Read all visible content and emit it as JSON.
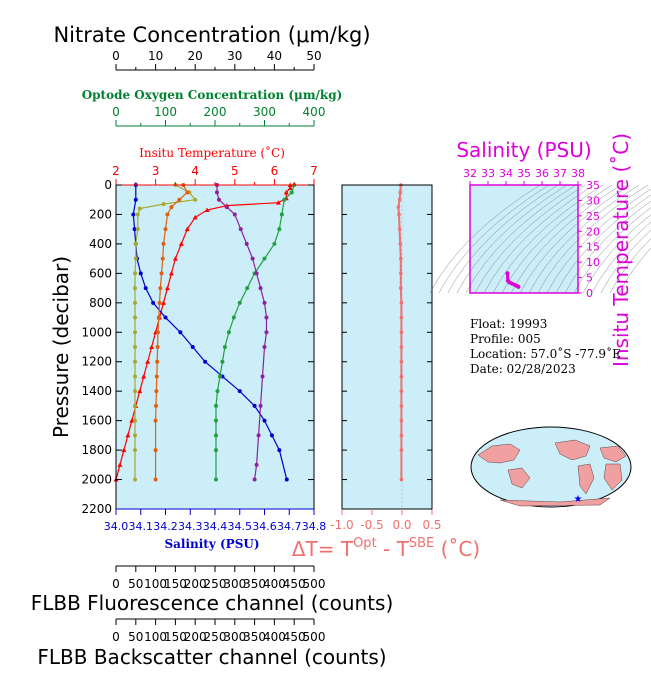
{
  "colors": {
    "nitrate": "#000000",
    "oxygen": "#008030",
    "temperature": "#ff0000",
    "salinity": "#0000cc",
    "dt": "#f07070",
    "magenta": "#dd00dd",
    "olive": "#a8a830",
    "orange": "#e06010",
    "green": "#20a040",
    "purple": "#9020a0",
    "panel_bg": "#cceef8"
  },
  "axes_text": {
    "nitrate_title": "Nitrate Concentration (μm/kg)",
    "oxygen_title": "Optode Oxygen Concentration (μm/kg)",
    "temperature_title": "Insitu Temperature (˚C)",
    "pressure_title": "Pressure (decibar)",
    "salinity_title": "Salinity (PSU)",
    "dt_title_prefix": "ΔT= T",
    "dt_title_sup1": "Opt",
    "dt_title_mid": " - T",
    "dt_title_sup2": "SBE",
    "dt_title_suffix": " (˚C)",
    "fluor_title": "FLBB Fluorescence channel (counts)",
    "backscatter_title": "FLBB Backscatter channel (counts)",
    "inset_sal_title": "Salinity (PSU)",
    "inset_temp_title": "Insitu Temperature (˚C)"
  },
  "info": {
    "float": "Float:  19993",
    "profile": "Profile:  005",
    "location": "Location:  57.0˚S  -77.9˚E",
    "date": "Date:  02/28/2023"
  },
  "chart_data": [
    {
      "type": "line",
      "id": "main_profile",
      "y_axis": {
        "label": "Pressure (decibar)",
        "range": [
          2200,
          0
        ],
        "ticks": [
          0,
          200,
          400,
          600,
          800,
          1000,
          1200,
          1400,
          1600,
          1800,
          2000,
          2200
        ]
      },
      "x_axes": {
        "nitrate": {
          "range": [
            0,
            50
          ],
          "ticks": [
            0,
            10,
            20,
            30,
            40,
            50
          ]
        },
        "oxygen": {
          "range": [
            0,
            400
          ],
          "ticks": [
            0,
            100,
            200,
            300,
            400
          ]
        },
        "temperature": {
          "range": [
            2,
            7
          ],
          "ticks": [
            2,
            3,
            4,
            5,
            6,
            7
          ]
        },
        "salinity": {
          "range": [
            34.0,
            34.8
          ],
          "ticks": [
            "34.0",
            "34.1",
            "34.2",
            "34.3",
            "34.4",
            "34.5",
            "34.6",
            "34.7",
            "34.8"
          ]
        },
        "fluorescence": {
          "range": [
            0,
            500
          ],
          "ticks": [
            0,
            50,
            100,
            150,
            200,
            250,
            300,
            350,
            400,
            450,
            500
          ]
        },
        "backscatter": {
          "range": [
            0,
            500
          ],
          "ticks": [
            0,
            50,
            100,
            150,
            200,
            250,
            300,
            350,
            400,
            450,
            500
          ]
        }
      },
      "series": [
        {
          "key": "temperature",
          "axis": "temperature",
          "color_key": "temperature",
          "marker": "triangle",
          "x": [
            6.4,
            6.4,
            6.3,
            6.3,
            6.1,
            4.8,
            4.3,
            4.0,
            3.8,
            3.65,
            3.5,
            3.4,
            3.3,
            3.2,
            3.1,
            3.0,
            2.9,
            2.8,
            2.7,
            2.6,
            2.5,
            2.4,
            2.3,
            2.2,
            2.1,
            2.0
          ],
          "y": [
            0,
            20,
            50,
            90,
            120,
            140,
            170,
            220,
            300,
            400,
            500,
            600,
            700,
            800,
            900,
            1000,
            1100,
            1200,
            1300,
            1400,
            1500,
            1600,
            1700,
            1800,
            1900,
            2000
          ]
        },
        {
          "key": "salinity",
          "axis": "salinity",
          "color_key": "salinity",
          "x": [
            34.08,
            34.08,
            34.07,
            34.075,
            34.08,
            34.085,
            34.1,
            34.12,
            34.15,
            34.2,
            34.26,
            34.31,
            34.36,
            34.43,
            34.5,
            34.56,
            34.6,
            34.63,
            34.66,
            34.69
          ],
          "y": [
            0,
            100,
            200,
            300,
            400,
            500,
            600,
            700,
            800,
            900,
            1000,
            1100,
            1200,
            1300,
            1400,
            1500,
            1600,
            1700,
            1800,
            2000
          ]
        },
        {
          "key": "oxygen",
          "axis": "oxygen",
          "color_key": "green",
          "x": [
            360,
            355,
            340,
            335,
            330,
            320,
            300,
            280,
            265,
            250,
            238,
            228,
            220,
            215,
            210,
            205,
            202,
            202,
            202,
            202,
            202
          ],
          "y": [
            0,
            50,
            100,
            200,
            300,
            400,
            500,
            600,
            700,
            800,
            900,
            1000,
            1100,
            1200,
            1300,
            1400,
            1500,
            1600,
            1700,
            1800,
            2000
          ]
        },
        {
          "key": "nitrate",
          "axis": "nitrate",
          "color_key": "purple",
          "x": [
            25.5,
            25.5,
            26,
            28,
            30,
            31.5,
            33,
            34.5,
            35.5,
            36.5,
            37.5,
            38,
            38,
            37.5,
            37,
            36.5,
            36,
            35.5,
            35
          ],
          "y": [
            0,
            50,
            100,
            150,
            200,
            300,
            400,
            500,
            600,
            700,
            800,
            900,
            1000,
            1100,
            1300,
            1500,
            1700,
            1900,
            2000
          ]
        },
        {
          "key": "fluorescence",
          "axis": "fluorescence",
          "color_key": "olive",
          "x": [
            150,
            185,
            200,
            120,
            60,
            55,
            55,
            50,
            50,
            48,
            48,
            48,
            48,
            48,
            48,
            48,
            48,
            48,
            48,
            48,
            48,
            48,
            48
          ],
          "y": [
            0,
            50,
            100,
            130,
            160,
            200,
            300,
            400,
            500,
            600,
            700,
            800,
            900,
            1000,
            1100,
            1200,
            1300,
            1400,
            1500,
            1600,
            1700,
            1800,
            2000
          ]
        },
        {
          "key": "backscatter",
          "axis": "backscatter",
          "color_key": "orange",
          "x": [
            170,
            180,
            160,
            140,
            130,
            125,
            120,
            118,
            115,
            112,
            110,
            108,
            106,
            105,
            104,
            103,
            102,
            101,
            100,
            100,
            100
          ],
          "y": [
            0,
            50,
            100,
            150,
            200,
            300,
            400,
            500,
            600,
            700,
            800,
            900,
            1000,
            1100,
            1200,
            1300,
            1400,
            1500,
            1600,
            1800,
            2000
          ]
        }
      ]
    },
    {
      "type": "line",
      "id": "delta_t",
      "x_axis": {
        "range": [
          -1.0,
          0.5
        ],
        "ticks": [
          "-1.0",
          "-0.5",
          "0.0",
          "0.5"
        ]
      },
      "y_axis": {
        "range": [
          2200,
          0
        ]
      },
      "series": [
        {
          "key": "dt",
          "color_key": "dt",
          "x": [
            -0.02,
            -0.03,
            -0.04,
            -0.06,
            -0.05,
            -0.04,
            -0.03,
            -0.02,
            -0.02,
            -0.02,
            -0.01,
            -0.01,
            -0.01,
            -0.01,
            -0.01,
            -0.01,
            -0.01,
            -0.01,
            -0.01,
            -0.01,
            -0.01,
            -0.01
          ],
          "y": [
            0,
            50,
            100,
            150,
            200,
            300,
            400,
            500,
            600,
            700,
            800,
            900,
            1000,
            1100,
            1200,
            1300,
            1400,
            1500,
            1600,
            1700,
            1800,
            2000
          ]
        }
      ]
    },
    {
      "type": "scatter",
      "id": "ts_inset",
      "x_axis": {
        "label": "Salinity (PSU)",
        "range": [
          32,
          38
        ],
        "ticks": [
          32,
          33,
          34,
          35,
          36,
          37,
          38
        ]
      },
      "y_axis": {
        "label": "Insitu Temperature (˚C)",
        "range": [
          0,
          35
        ],
        "ticks": [
          0,
          5,
          10,
          15,
          20,
          25,
          30,
          35
        ]
      },
      "series": [
        {
          "key": "ts",
          "color_key": "magenta",
          "x": [
            34.08,
            34.1,
            34.2,
            34.35,
            34.5,
            34.6,
            34.69
          ],
          "y": [
            6.4,
            4.0,
            3.4,
            3.0,
            2.6,
            2.3,
            2.0
          ]
        }
      ]
    }
  ]
}
